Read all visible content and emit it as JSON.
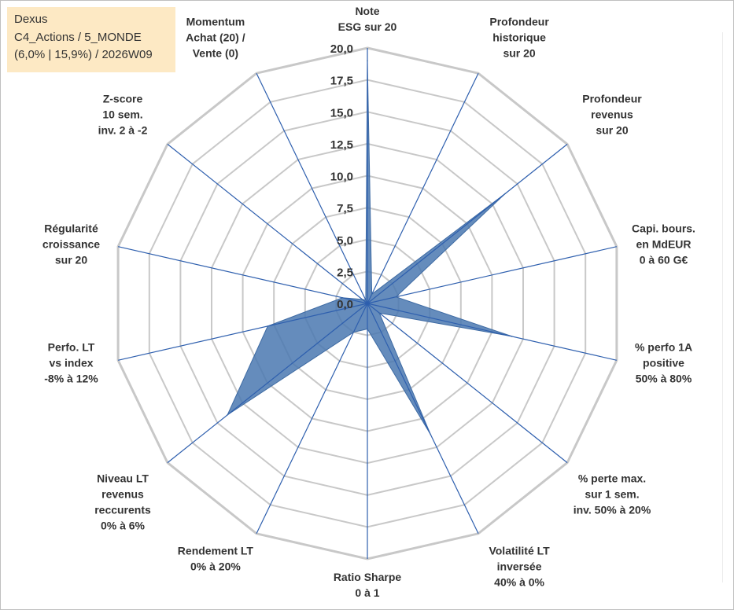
{
  "title_box": {
    "line1": "Dexus",
    "line2": "C4_Actions / 5_MONDE",
    "line3": "(6,0% | 15,9%) / 2026W09"
  },
  "chart_data": {
    "type": "radar",
    "title": "Dexus",
    "subtitle": "C4_Actions / 5_MONDE (6,0% | 15,9%) / 2026W09",
    "rlim": [
      0,
      20
    ],
    "ticks": [
      0,
      2.5,
      5,
      7.5,
      10,
      12.5,
      15,
      17.5,
      20
    ],
    "tick_labels": [
      "0,0",
      "2,5",
      "5,0",
      "7,5",
      "10,0",
      "12,5",
      "15,0",
      "17,5",
      "20,0"
    ],
    "grid": true,
    "fill_color": "#4a78b0",
    "grid_color": "#c8c8c8",
    "spoke_color": "#2e5fae",
    "categories": [
      {
        "label": [
          "Note",
          "ESG sur 20"
        ],
        "value": 19.0
      },
      {
        "label": [
          "Profondeur",
          "historique",
          "sur 20"
        ],
        "value": 0.8
      },
      {
        "label": [
          "Profondeur",
          "revenus",
          "sur 20"
        ],
        "value": 13.8
      },
      {
        "label": [
          "Capi. bours.",
          "en MdEUR",
          "0 à 60 G€"
        ],
        "value": 2.3
      },
      {
        "label": [
          "% perfo 1A",
          "positive",
          "50% à 80%"
        ],
        "value": 11.6
      },
      {
        "label": [
          "% perte max.",
          "sur 1 sem.",
          "inv. 50% à 20%"
        ],
        "value": 1.2
      },
      {
        "label": [
          "Volatilité LT",
          "inversée",
          "40% à 0%"
        ],
        "value": 11.4
      },
      {
        "label": [
          "Ratio Sharpe",
          "0 à 1"
        ],
        "value": 2.0
      },
      {
        "label": [
          "Rendement LT",
          "0% à 20%"
        ],
        "value": 2.5
      },
      {
        "label": [
          "Niveau LT",
          "revenus",
          "reccurents",
          "0% à 6%"
        ],
        "value": 14.0
      },
      {
        "label": [
          "Perfo. LT",
          "vs index",
          "-8% à 12%"
        ],
        "value": 8.0
      },
      {
        "label": [
          "Régularité",
          "croissance",
          "sur 20"
        ],
        "value": 2.0
      },
      {
        "label": [
          "Z-score",
          "10 sem.",
          "inv. 2 à -2"
        ],
        "value": 0.5
      },
      {
        "label": [
          "Momentum",
          "Achat (20) /",
          "Vente (0)"
        ],
        "value": 0.3
      }
    ]
  }
}
